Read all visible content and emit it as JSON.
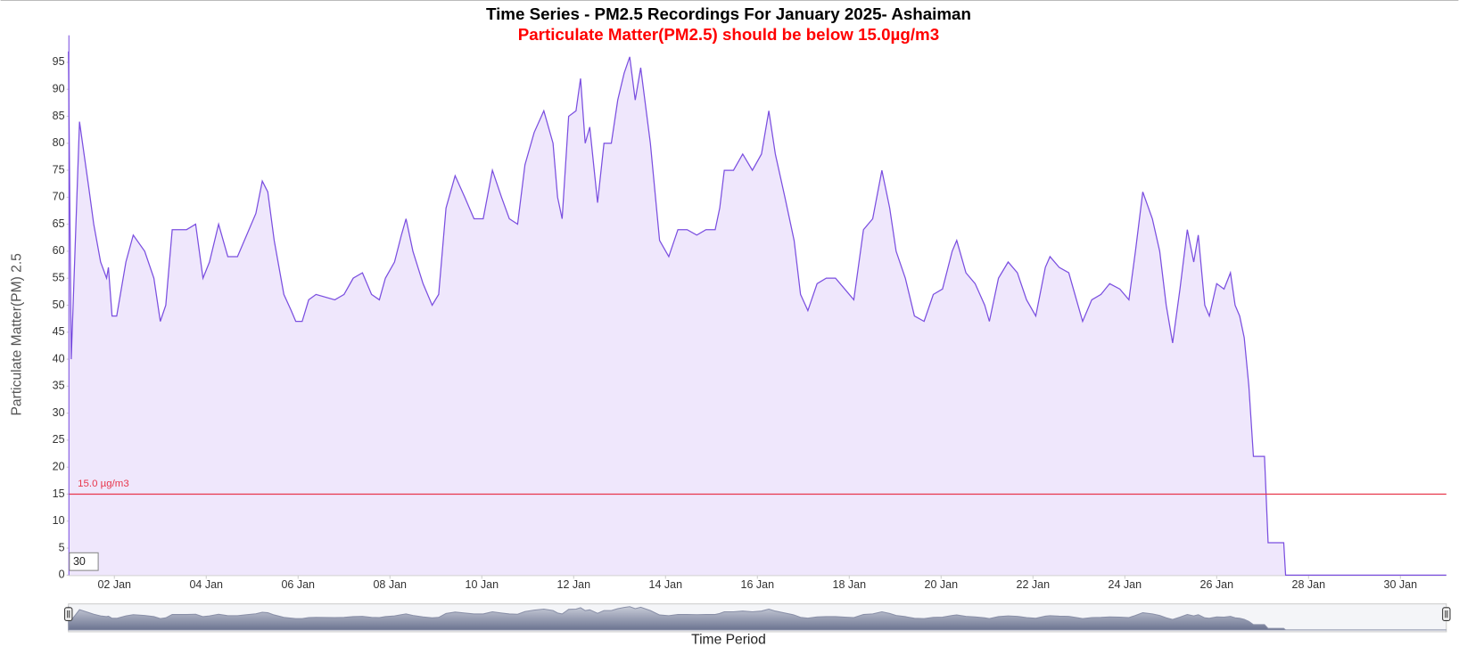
{
  "chart_data": {
    "type": "area",
    "title": "Time Series - PM2.5 Recordings For January 2025- Ashaiman",
    "subtitle": "Particulate Matter(PM2.5) should be below 15.0µg/m3",
    "y_label": "Particulate Matter(PM) 2.5",
    "x_label": "Time Period",
    "zoom_box": "30",
    "threshold": 15,
    "threshold_label": "15.0 µg/m3",
    "threshold_color": "#e8364b",
    "line_color": "#7b4fe0",
    "fill_color": "#efe7fc",
    "xlim": [
      1,
      31
    ],
    "xticks": [
      {
        "value": 2,
        "label": "02 Jan"
      },
      {
        "value": 4,
        "label": "04 Jan"
      },
      {
        "value": 6,
        "label": "06 Jan"
      },
      {
        "value": 8,
        "label": "08 Jan"
      },
      {
        "value": 10,
        "label": "10 Jan"
      },
      {
        "value": 12,
        "label": "12 Jan"
      },
      {
        "value": 14,
        "label": "14 Jan"
      },
      {
        "value": 16,
        "label": "16 Jan"
      },
      {
        "value": 18,
        "label": "18 Jan"
      },
      {
        "value": 20,
        "label": "20 Jan"
      },
      {
        "value": 22,
        "label": "22 Jan"
      },
      {
        "value": 24,
        "label": "24 Jan"
      },
      {
        "value": 26,
        "label": "26 Jan"
      },
      {
        "value": 28,
        "label": "28 Jan"
      },
      {
        "value": 30,
        "label": "30 Jan"
      }
    ],
    "ylim": [
      0,
      100
    ],
    "yticks": [
      0,
      5,
      10,
      15,
      20,
      25,
      30,
      35,
      40,
      45,
      50,
      55,
      60,
      65,
      70,
      75,
      80,
      85,
      90,
      95
    ],
    "x": [
      1.0,
      1.06,
      1.24,
      1.44,
      1.55,
      1.7,
      1.83,
      1.87,
      1.95,
      2.05,
      2.25,
      2.41,
      2.66,
      2.86,
      3.0,
      3.12,
      3.26,
      3.57,
      3.77,
      3.93,
      4.07,
      4.27,
      4.47,
      4.68,
      4.88,
      5.08,
      5.22,
      5.34,
      5.48,
      5.69,
      5.85,
      5.95,
      6.09,
      6.23,
      6.39,
      6.8,
      7.0,
      7.2,
      7.4,
      7.6,
      7.77,
      7.9,
      8.1,
      8.25,
      8.35,
      8.5,
      8.72,
      8.92,
      9.06,
      9.22,
      9.42,
      9.63,
      9.83,
      10.03,
      10.23,
      10.43,
      10.6,
      10.78,
      10.94,
      11.14,
      11.35,
      11.55,
      11.65,
      11.75,
      11.89,
      12.05,
      12.15,
      12.25,
      12.35,
      12.52,
      12.66,
      12.82,
      12.96,
      13.1,
      13.22,
      13.34,
      13.46,
      13.67,
      13.87,
      14.07,
      14.27,
      14.47,
      14.68,
      14.88,
      15.08,
      15.18,
      15.28,
      15.48,
      15.68,
      15.89,
      16.09,
      16.25,
      16.39,
      16.6,
      16.8,
      16.94,
      17.1,
      17.3,
      17.5,
      17.7,
      17.9,
      18.1,
      18.31,
      18.51,
      18.71,
      18.88,
      19.02,
      19.22,
      19.42,
      19.63,
      19.83,
      20.03,
      20.24,
      20.34,
      20.54,
      20.74,
      20.95,
      21.05,
      21.25,
      21.46,
      21.66,
      21.86,
      22.06,
      22.27,
      22.37,
      22.57,
      22.78,
      22.98,
      23.08,
      23.28,
      23.48,
      23.67,
      23.89,
      24.09,
      24.23,
      24.39,
      24.6,
      24.76,
      24.9,
      25.04,
      25.2,
      25.36,
      25.5,
      25.6,
      25.74,
      25.84,
      26.0,
      26.16,
      26.3,
      26.4,
      26.5,
      26.6,
      26.7,
      26.8,
      26.9,
      27.04,
      27.12,
      27.46,
      27.5,
      31.0
    ],
    "values": [
      97,
      40,
      84,
      72,
      65,
      58,
      55,
      57,
      48,
      48,
      58,
      63,
      60,
      55,
      47,
      50,
      64,
      64,
      65,
      55,
      58,
      65,
      59,
      59,
      63,
      67,
      73,
      71,
      62,
      52,
      49,
      47,
      47,
      51,
      52,
      51,
      52,
      55,
      56,
      52,
      51,
      55,
      58,
      63,
      66,
      60,
      54,
      50,
      52,
      68,
      74,
      70,
      66,
      66,
      75,
      70,
      66,
      65,
      76,
      82,
      86,
      80,
      70,
      66,
      85,
      86,
      92,
      80,
      83,
      69,
      80,
      80,
      88,
      93,
      96,
      88,
      94,
      80,
      62,
      59,
      64,
      64,
      63,
      64,
      64,
      68,
      75,
      75,
      78,
      75,
      78,
      86,
      78,
      70,
      62,
      52,
      49,
      54,
      55,
      55,
      53,
      51,
      64,
      66,
      75,
      68,
      60,
      55,
      48,
      47,
      52,
      53,
      60,
      62,
      56,
      54,
      50,
      47,
      55,
      58,
      56,
      51,
      48,
      57,
      59,
      57,
      56,
      50,
      47,
      51,
      52,
      54,
      53,
      51,
      60,
      71,
      66,
      60,
      50,
      43,
      53,
      64,
      58,
      63,
      50,
      48,
      54,
      53,
      56,
      50,
      48,
      44,
      35,
      22,
      22,
      22,
      6,
      6,
      0,
      0
    ]
  }
}
